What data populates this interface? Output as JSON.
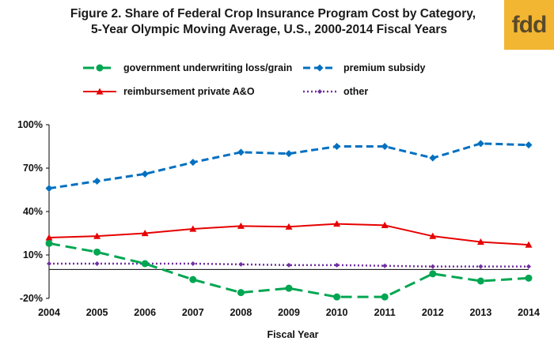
{
  "logo_text": "fdd",
  "chart_data": {
    "type": "line",
    "title": "Figure 2. Share of Federal Crop Insurance Program Cost by Category,",
    "subtitle": "5-Year Olympic Moving Average, U.S., 2000-2014 Fiscal Years",
    "xlabel": "Fiscal Year",
    "ylabel": "",
    "x": [
      "2004",
      "2005",
      "2006",
      "2007",
      "2008",
      "2009",
      "2010",
      "2011",
      "2012",
      "2013",
      "2014"
    ],
    "ylim": [
      -20,
      100
    ],
    "yticks": [
      "100%",
      "70%",
      "40%",
      "10%",
      "-20%"
    ],
    "ytick_values": [
      100,
      70,
      40,
      10,
      -20
    ],
    "legend_position": "top",
    "series": [
      {
        "name": "government underwriting loss/grain",
        "color": "#00a651",
        "style": "long-dash",
        "marker": "circle",
        "values": [
          18,
          12,
          4,
          -7,
          -16,
          -13,
          -19,
          -19,
          -3,
          -8,
          -6
        ]
      },
      {
        "name": "premium subsidy",
        "color": "#0070c0",
        "style": "dash",
        "marker": "diamond",
        "values": [
          56,
          61,
          66,
          74,
          81,
          80,
          85,
          85,
          77,
          87,
          86
        ]
      },
      {
        "name": "reimbursement private A&O",
        "color": "#e60000",
        "style": "solid",
        "marker": "triangle",
        "values": [
          22,
          23,
          25,
          28,
          30,
          29.5,
          31.5,
          30.5,
          23,
          19,
          17
        ]
      },
      {
        "name": "other",
        "color": "#7030a0",
        "style": "dot",
        "marker": "diamond",
        "values": [
          4,
          4,
          4,
          4,
          3.5,
          3,
          3,
          2.5,
          2,
          2,
          2
        ]
      }
    ]
  }
}
